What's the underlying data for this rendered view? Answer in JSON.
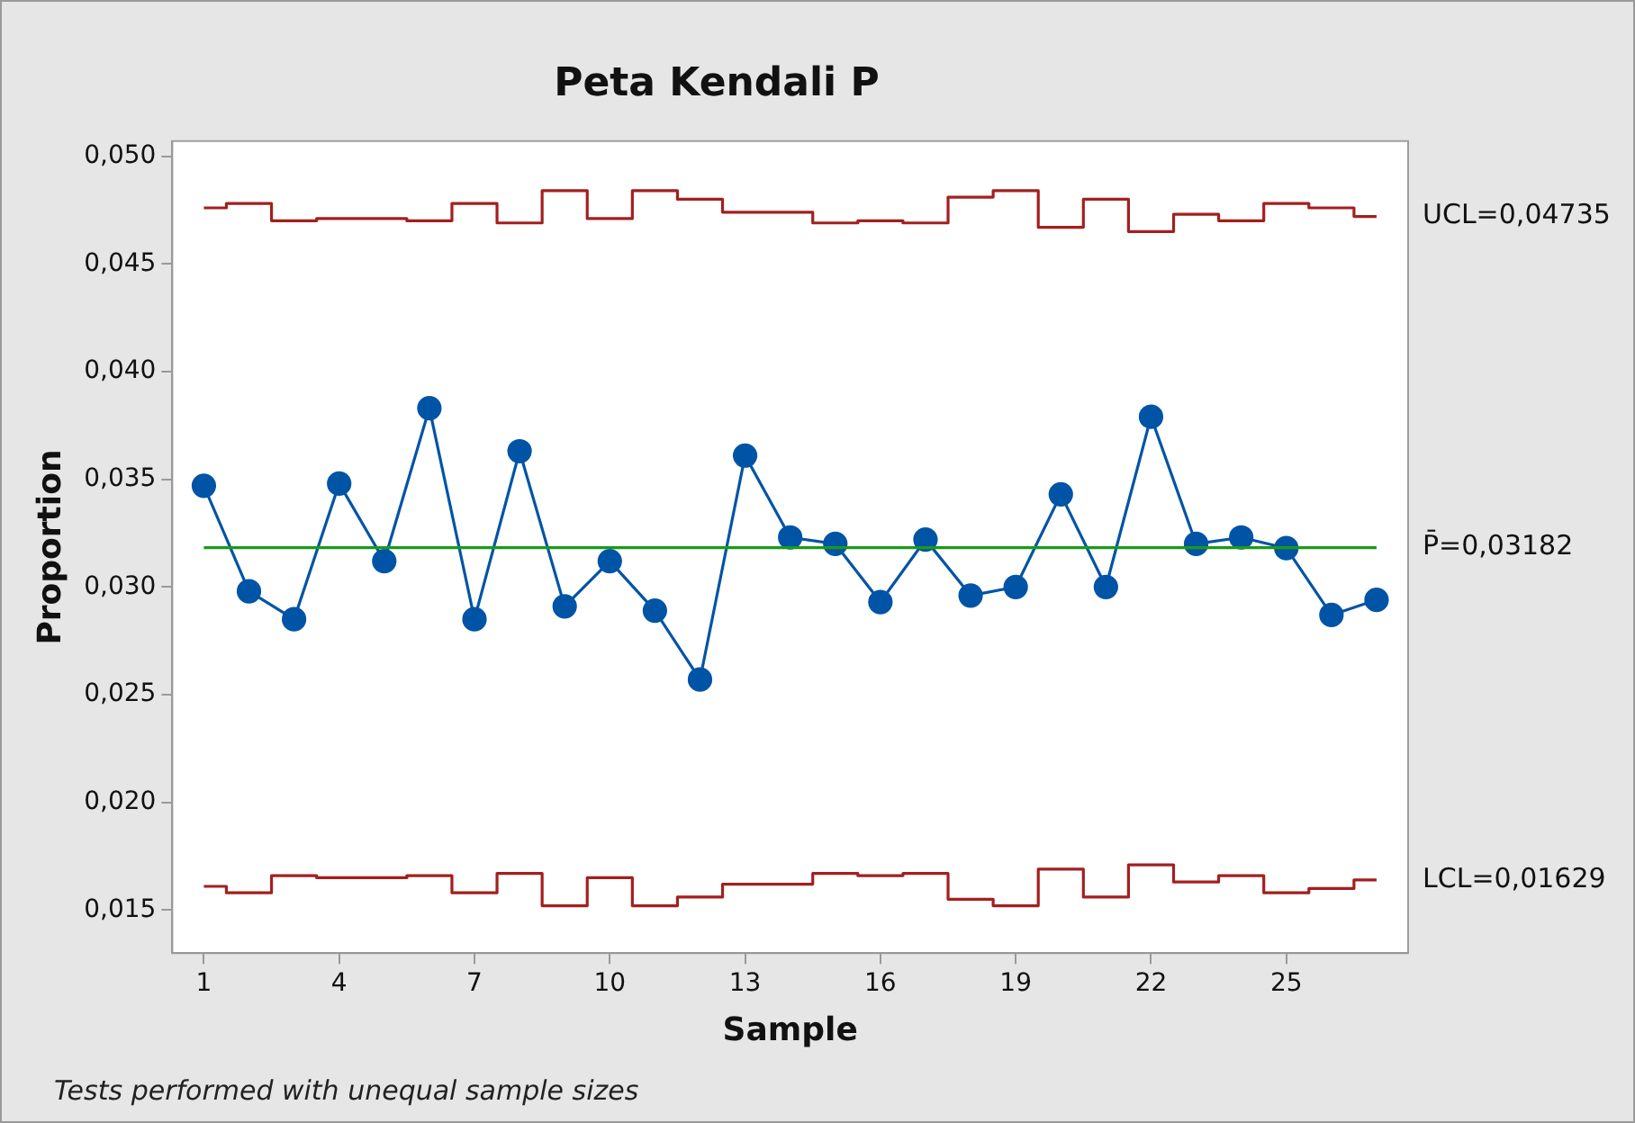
{
  "chart_data": {
    "type": "line",
    "title": "Peta Kendali P",
    "xlabel": "Sample",
    "ylabel": "Proportion",
    "x": [
      1,
      2,
      3,
      4,
      5,
      6,
      7,
      8,
      9,
      10,
      11,
      12,
      13,
      14,
      15,
      16,
      17,
      18,
      19,
      20,
      21,
      22,
      23,
      24,
      25,
      26,
      27
    ],
    "series": [
      {
        "color": "#0054a6",
        "marker": "circle",
        "values": [
          0.0347,
          0.0298,
          0.0285,
          0.0348,
          0.0312,
          0.0383,
          0.0285,
          0.0363,
          0.0291,
          0.0312,
          0.0289,
          0.0257,
          0.0361,
          0.0323,
          0.032,
          0.0293,
          0.0322,
          0.0296,
          0.03,
          0.0343,
          0.03,
          0.0379,
          0.032,
          0.0323,
          0.0318,
          0.0287,
          0.0294
        ]
      },
      {
        "type": "step",
        "name": "UCL=0,04735",
        "color": "#a31f1f",
        "marker": "none",
        "values": [
          0.0476,
          0.0478,
          0.047,
          0.0471,
          0.0471,
          0.047,
          0.0478,
          0.0469,
          0.0484,
          0.0471,
          0.0484,
          0.048,
          0.0474,
          0.0474,
          0.0469,
          0.047,
          0.0469,
          0.0481,
          0.0484,
          0.0467,
          0.048,
          0.0465,
          0.0473,
          0.047,
          0.0478,
          0.0476,
          0.0472
        ]
      },
      {
        "type": "step",
        "name": "LCL=0,01629",
        "color": "#a31f1f",
        "marker": "none",
        "values": [
          0.0161,
          0.0158,
          0.0166,
          0.0165,
          0.0165,
          0.0166,
          0.0158,
          0.0167,
          0.0152,
          0.0165,
          0.0152,
          0.0156,
          0.0162,
          0.0162,
          0.0167,
          0.0166,
          0.0167,
          0.0155,
          0.0152,
          0.0169,
          0.0156,
          0.0171,
          0.0163,
          0.0166,
          0.0158,
          0.016,
          0.0164
        ]
      }
    ],
    "ref_lines": [
      {
        "axis": "y",
        "value": 0.03182,
        "label": "P̄=0,03182",
        "color": "#1a9a1a"
      }
    ],
    "xlim": [
      0.3,
      27.7
    ],
    "xticks": [
      1,
      4,
      7,
      10,
      13,
      16,
      19,
      22,
      25
    ],
    "ylim": [
      0.013,
      0.0507
    ],
    "yticks": [
      {
        "value": 0.015,
        "label": "0,015"
      },
      {
        "value": 0.02,
        "label": "0,020"
      },
      {
        "value": 0.025,
        "label": "0,025"
      },
      {
        "value": 0.03,
        "label": "0,030"
      },
      {
        "value": 0.035,
        "label": "0,035"
      },
      {
        "value": 0.04,
        "label": "0,040"
      },
      {
        "value": 0.045,
        "label": "0,045"
      },
      {
        "value": 0.05,
        "label": "0,050"
      }
    ],
    "grid": false,
    "legend": false,
    "line_style": "solid",
    "annotations": [
      "Tests performed with unequal sample sizes"
    ]
  }
}
